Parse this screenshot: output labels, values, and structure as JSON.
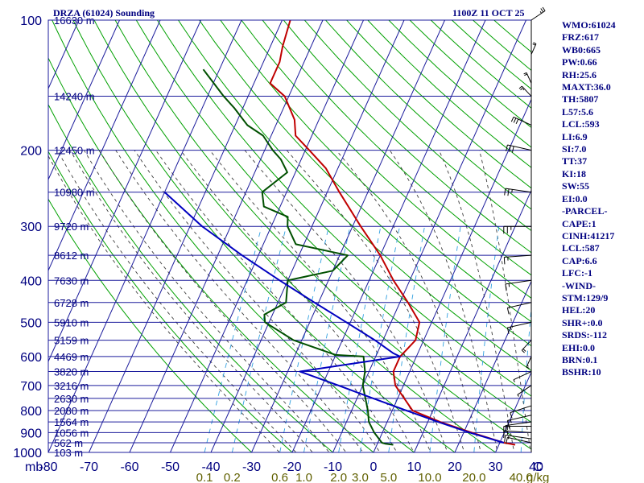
{
  "header": {
    "title": "DRZA (61024) Sounding",
    "time": "1100Z 11 OCT 25"
  },
  "indices": [
    "WMO:61024",
    "FRZ:617",
    "WB0:665",
    "PW:0.66",
    "RH:25.6",
    "MAXT:36.0",
    "TH:5807",
    "L57:5.6",
    "LCL:593",
    "LI:6.9",
    "SI:7.0",
    "TT:37",
    "KI:18",
    "SW:55",
    "EI:0.0",
    "-PARCEL-",
    "CAPE:1",
    "CINH:41217",
    "LCL:587",
    "CAP:6.6",
    "LFC:-1",
    "-WIND-",
    "STM:129/9",
    "HEL:20",
    "SHR+:0.0",
    "SRDS:-112",
    "EHI:0.0",
    "BRN:0.1",
    "BSHR:10"
  ],
  "colors": {
    "isobar": "#1c1c9c",
    "isotherm": "#1c1c9c",
    "dry_adiabat": "#00a000",
    "moist_adiabat": "#3c3c3c",
    "mixing_ratio": "#30a0e0",
    "temperature": "#c00000",
    "dewpoint": "#005000",
    "parcel": "#0000c0",
    "axis_text": "#000080",
    "mixing_text": "#606000",
    "background": "#ffffff"
  },
  "chart_data": {
    "type": "line",
    "title": "DRZA (61024) Sounding",
    "xlabel": "",
    "ylabel": "mb",
    "y_scale": "log",
    "ylim": [
      1000,
      100
    ],
    "xlim": [
      -80,
      40
    ],
    "pressure_ticks": [
      100,
      200,
      300,
      400,
      500,
      600,
      700,
      800,
      900,
      1000
    ],
    "pressure_tick_labels": [
      "100",
      "200",
      "300",
      "400",
      "500",
      "600",
      "700",
      "800",
      "900",
      "1000"
    ],
    "temperature_ticks": [
      -80,
      -70,
      -60,
      -50,
      -40,
      -30,
      -20,
      -10,
      0,
      10,
      20,
      30,
      40
    ],
    "temperature_tick_labels": [
      "-80",
      "-70",
      "-60",
      "-50",
      "-40",
      "-30",
      "-20",
      "-10",
      "0",
      "10",
      "20",
      "30",
      "40"
    ],
    "unit_labels": {
      "pressure": "mb",
      "temperature": "C",
      "mixing_ratio": "g/kg"
    },
    "mixing_ratio_values": [
      0.1,
      0.2,
      0.6,
      1.0,
      2.0,
      3.0,
      5.0,
      10.0,
      20.0,
      40.0
    ],
    "mixing_ratio_labels": [
      "0.1",
      "0.2",
      "0.6",
      "1.0",
      "2.0",
      "3.0",
      "5.0",
      "10.0",
      "20.0",
      "40.0"
    ],
    "heights": [
      {
        "p": 100,
        "label": "16630 m"
      },
      {
        "p": 150,
        "label": "14240 m"
      },
      {
        "p": 200,
        "label": "12450 m"
      },
      {
        "p": 250,
        "label": "10980 m"
      },
      {
        "p": 300,
        "label": "9720 m"
      },
      {
        "p": 350,
        "label": "8612 m"
      },
      {
        "p": 400,
        "label": "7630 m"
      },
      {
        "p": 450,
        "label": "6728 m"
      },
      {
        "p": 500,
        "label": "5910 m"
      },
      {
        "p": 550,
        "label": "5159 m"
      },
      {
        "p": 600,
        "label": "4469 m"
      },
      {
        "p": 650,
        "label": "3820 m"
      },
      {
        "p": 700,
        "label": "3216 m"
      },
      {
        "p": 750,
        "label": "2630 m"
      },
      {
        "p": 800,
        "label": "2080 m"
      },
      {
        "p": 850,
        "label": "1564 m"
      },
      {
        "p": 900,
        "label": "1056 m"
      },
      {
        "p": 950,
        "label": "562 m"
      },
      {
        "p": 1000,
        "label": "103 m"
      }
    ],
    "series": [
      {
        "key": "temperature",
        "points": [
          [
            960,
            34.0
          ],
          [
            950,
            31.0
          ],
          [
            900,
            22.0
          ],
          [
            850,
            13.0
          ],
          [
            800,
            5.0
          ],
          [
            700,
            -2.0
          ],
          [
            650,
            -4.0
          ],
          [
            600,
            -4.0
          ],
          [
            575,
            -3.0
          ],
          [
            550,
            -2.0
          ],
          [
            500,
            -3.0
          ],
          [
            450,
            -8.0
          ],
          [
            400,
            -14.0
          ],
          [
            350,
            -20.0
          ],
          [
            300,
            -28.0
          ],
          [
            250,
            -37.0
          ],
          [
            220,
            -43.0
          ],
          [
            200,
            -49.0
          ],
          [
            185,
            -54.0
          ],
          [
            170,
            -56.0
          ],
          [
            150,
            -61.0
          ],
          [
            140,
            -66.0
          ],
          [
            125,
            -66.0
          ],
          [
            115,
            -67.0
          ],
          [
            100,
            -68.0
          ]
        ]
      },
      {
        "key": "dewpoint",
        "points": [
          [
            960,
            4.0
          ],
          [
            955,
            2.0
          ],
          [
            950,
            1.0
          ],
          [
            900,
            -2.0
          ],
          [
            850,
            -4.5
          ],
          [
            800,
            -6.0
          ],
          [
            700,
            -10.0
          ],
          [
            650,
            -11.0
          ],
          [
            600,
            -13.0
          ],
          [
            595,
            -20.0
          ],
          [
            550,
            -32.0
          ],
          [
            500,
            -41.0
          ],
          [
            480,
            -42.0
          ],
          [
            450,
            -38.0
          ],
          [
            400,
            -40.0
          ],
          [
            380,
            -30.0
          ],
          [
            350,
            -28.0
          ],
          [
            330,
            -42.0
          ],
          [
            300,
            -46.0
          ],
          [
            285,
            -47.0
          ],
          [
            270,
            -54.0
          ],
          [
            250,
            -56.0
          ],
          [
            225,
            -52.0
          ],
          [
            210,
            -55.0
          ],
          [
            200,
            -58.0
          ],
          [
            185,
            -62.0
          ],
          [
            175,
            -67.0
          ],
          [
            160,
            -72.0
          ],
          [
            150,
            -76.0
          ],
          [
            130,
            -84.0
          ]
        ]
      },
      {
        "key": "parcel",
        "points": [
          [
            950,
            31.0
          ],
          [
            900,
            21.5
          ],
          [
            850,
            12.5
          ],
          [
            800,
            3.5
          ],
          [
            750,
            -6.0
          ],
          [
            700,
            -16.0
          ],
          [
            650,
            -27.0
          ],
          [
            600,
            -4.0
          ],
          [
            590,
            -6.0
          ],
          [
            550,
            -12.0
          ],
          [
            500,
            -21.0
          ],
          [
            450,
            -31.0
          ],
          [
            400,
            -42.0
          ],
          [
            350,
            -54.0
          ],
          [
            300,
            -67.0
          ],
          [
            250,
            -80.0
          ]
        ]
      }
    ],
    "wind_barbs": [
      {
        "p": 950,
        "dir": 300,
        "spd": 10
      },
      {
        "p": 930,
        "dir": 290,
        "spd": 15
      },
      {
        "p": 900,
        "dir": 280,
        "spd": 15
      },
      {
        "p": 870,
        "dir": 270,
        "spd": 15
      },
      {
        "p": 850,
        "dir": 250,
        "spd": 15
      },
      {
        "p": 820,
        "dir": 240,
        "spd": 15
      },
      {
        "p": 780,
        "dir": 230,
        "spd": 10
      },
      {
        "p": 700,
        "dir": 210,
        "spd": 5
      },
      {
        "p": 650,
        "dir": 220,
        "spd": 5
      },
      {
        "p": 600,
        "dir": 190,
        "spd": 15
      },
      {
        "p": 550,
        "dir": 200,
        "spd": 20
      },
      {
        "p": 500,
        "dir": 240,
        "spd": 15
      },
      {
        "p": 450,
        "dir": 240,
        "spd": 10
      },
      {
        "p": 400,
        "dir": 250,
        "spd": 15
      },
      {
        "p": 350,
        "dir": 260,
        "spd": 15
      },
      {
        "p": 300,
        "dir": 270,
        "spd": 25
      },
      {
        "p": 250,
        "dir": 290,
        "spd": 25
      },
      {
        "p": 200,
        "dir": 300,
        "spd": 30
      },
      {
        "p": 175,
        "dir": 320,
        "spd": 30
      },
      {
        "p": 150,
        "dir": 340,
        "spd": 25
      },
      {
        "p": 140,
        "dir": 350,
        "spd": 20
      },
      {
        "p": 120,
        "dir": 10,
        "spd": 20
      },
      {
        "p": 100,
        "dir": 30,
        "spd": 25
      }
    ]
  }
}
